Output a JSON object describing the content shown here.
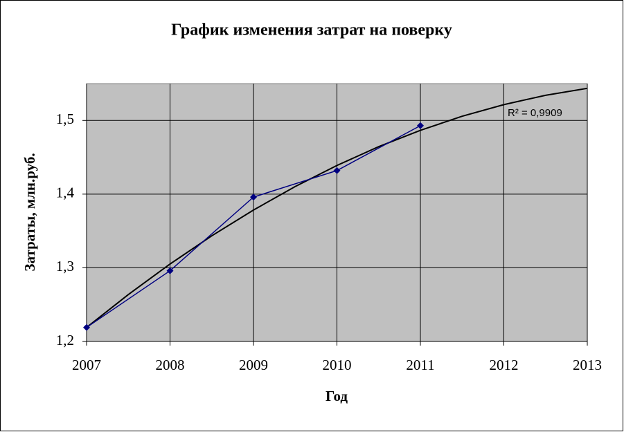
{
  "chart_data": {
    "type": "line",
    "title": "График изменения затрат на поверку",
    "x_label": "Год",
    "y_label": "Затраты, млн.руб.",
    "x": [
      2007,
      2008,
      2009,
      2010,
      2011
    ],
    "series": [
      {
        "color": "#000080",
        "values": [
          1.219,
          1.296,
          1.396,
          1.432,
          1.493
        ]
      }
    ],
    "trendline": {
      "color": "#000000",
      "label": "R² = 0,9909",
      "x": [
        2007,
        2007.5,
        2008,
        2008.5,
        2009,
        2009.5,
        2010,
        2010.5,
        2011,
        2011.5,
        2012,
        2012.5,
        2013
      ],
      "values": [
        1.219,
        1.2636,
        1.3051,
        1.3434,
        1.3784,
        1.4103,
        1.4389,
        1.4644,
        1.4866,
        1.5057,
        1.5215,
        1.5342,
        1.5436
      ]
    },
    "xlim": [
      2007,
      2013
    ],
    "xticks": [
      2007,
      2008,
      2009,
      2010,
      2011,
      2012,
      2013
    ],
    "ylim": [
      1.2,
      1.55
    ],
    "yticks": [
      {
        "value": 1.2,
        "label": "1,2"
      },
      {
        "value": 1.3,
        "label": "1,3"
      },
      {
        "value": 1.4,
        "label": "1,4"
      },
      {
        "value": 1.5,
        "label": "1,5"
      }
    ],
    "grid": true,
    "plot_background": "#c0c0c0"
  }
}
